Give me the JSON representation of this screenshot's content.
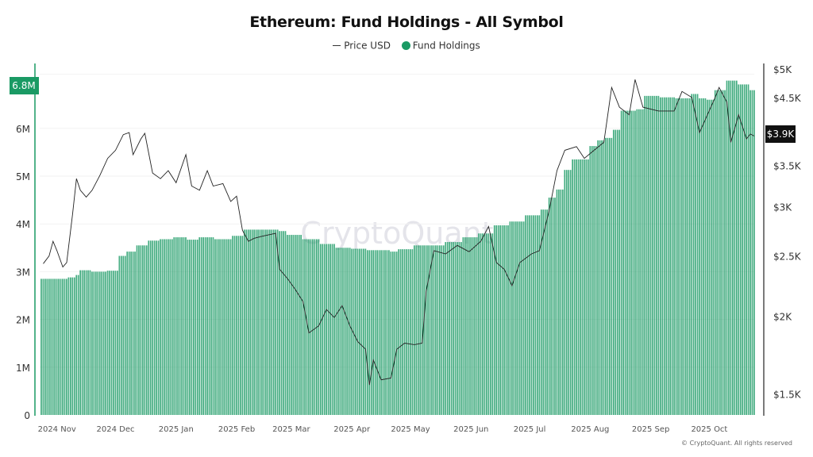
{
  "chart_data": {
    "type": "bar+line",
    "title": "Ethereum: Fund Holdings - All Symbol",
    "legend": {
      "placement": "top-center",
      "items": [
        "Price USD",
        "Fund Holdings"
      ]
    },
    "watermark": "CryptoQuant",
    "copyright": "© CryptoQuant. All rights reserved",
    "colors": {
      "fund_holdings": "#1a9a64",
      "price": "#222222",
      "current_holdings_label_bg": "#1a9a64",
      "current_price_label_bg": "#111111"
    },
    "x_range": [
      "2024-10-24",
      "2025-10-24"
    ],
    "x_ticks": [
      {
        "date": "2024-11-01",
        "label": "2024 Nov"
      },
      {
        "date": "2024-12-01",
        "label": "2024 Dec"
      },
      {
        "date": "2025-01-01",
        "label": "2025 Jan"
      },
      {
        "date": "2025-02-01",
        "label": "2025 Feb"
      },
      {
        "date": "2025-03-01",
        "label": "2025 Mar"
      },
      {
        "date": "2025-04-01",
        "label": "2025 Apr"
      },
      {
        "date": "2025-05-01",
        "label": "2025 May"
      },
      {
        "date": "2025-06-01",
        "label": "2025 Jun"
      },
      {
        "date": "2025-07-01",
        "label": "2025 Jul"
      },
      {
        "date": "2025-08-01",
        "label": "2025 Aug"
      },
      {
        "date": "2025-09-01",
        "label": "2025 Sep"
      },
      {
        "date": "2025-10-01",
        "label": "2025 Oct"
      }
    ],
    "y_left": {
      "scale": "linear",
      "range": [
        0,
        7200000
      ],
      "ticks": [
        {
          "v": 0,
          "label": "0"
        },
        {
          "v": 1000000,
          "label": "1M"
        },
        {
          "v": 2000000,
          "label": "2M"
        },
        {
          "v": 3000000,
          "label": "3M"
        },
        {
          "v": 4000000,
          "label": "4M"
        },
        {
          "v": 5000000,
          "label": "5M"
        },
        {
          "v": 6000000,
          "label": "6M"
        }
      ],
      "current_label": "6.8M",
      "current_value": 6800000
    },
    "y_right": {
      "scale": "log",
      "range": [
        1300,
        5000
      ],
      "ticks": [
        {
          "v": 1500,
          "label": "$1.5K"
        },
        {
          "v": 2000,
          "label": "$2K"
        },
        {
          "v": 2500,
          "label": "$2.5K"
        },
        {
          "v": 3000,
          "label": "$3K"
        },
        {
          "v": 3500,
          "label": "$3.5K"
        },
        {
          "v": 4500,
          "label": "$4.5K"
        },
        {
          "v": 5000,
          "label": "$5K"
        }
      ],
      "current_label": "$3.9K",
      "current_value": 3900
    },
    "grid": true,
    "series": [
      {
        "name": "Fund Holdings",
        "type": "bar",
        "axis": "left",
        "points": [
          [
            "2024-10-24",
            2850000
          ],
          [
            "2024-11-07",
            2880000
          ],
          [
            "2024-11-11",
            2930000
          ],
          [
            "2024-11-13",
            3030000
          ],
          [
            "2024-11-19",
            3000000
          ],
          [
            "2024-11-27",
            3020000
          ],
          [
            "2024-12-03",
            3330000
          ],
          [
            "2024-12-07",
            3420000
          ],
          [
            "2024-12-12",
            3550000
          ],
          [
            "2024-12-18",
            3650000
          ],
          [
            "2024-12-24",
            3680000
          ],
          [
            "2024-12-31",
            3720000
          ],
          [
            "2025-01-07",
            3670000
          ],
          [
            "2025-01-13",
            3720000
          ],
          [
            "2025-01-21",
            3680000
          ],
          [
            "2025-01-30",
            3750000
          ],
          [
            "2025-02-05",
            3880000
          ],
          [
            "2025-02-15",
            3880000
          ],
          [
            "2025-02-23",
            3850000
          ],
          [
            "2025-02-27",
            3770000
          ],
          [
            "2025-03-07",
            3680000
          ],
          [
            "2025-03-16",
            3580000
          ],
          [
            "2025-03-24",
            3500000
          ],
          [
            "2025-04-01",
            3480000
          ],
          [
            "2025-04-09",
            3450000
          ],
          [
            "2025-04-21",
            3420000
          ],
          [
            "2025-04-25",
            3470000
          ],
          [
            "2025-05-03",
            3550000
          ],
          [
            "2025-05-11",
            3550000
          ],
          [
            "2025-05-19",
            3620000
          ],
          [
            "2025-05-28",
            3720000
          ],
          [
            "2025-06-05",
            3800000
          ],
          [
            "2025-06-13",
            3970000
          ],
          [
            "2025-06-21",
            4050000
          ],
          [
            "2025-06-29",
            4180000
          ],
          [
            "2025-07-07",
            4300000
          ],
          [
            "2025-07-11",
            4550000
          ],
          [
            "2025-07-15",
            4720000
          ],
          [
            "2025-07-19",
            5130000
          ],
          [
            "2025-07-23",
            5350000
          ],
          [
            "2025-08-01",
            5630000
          ],
          [
            "2025-08-05",
            5750000
          ],
          [
            "2025-08-09",
            5800000
          ],
          [
            "2025-08-13",
            5970000
          ],
          [
            "2025-08-17",
            6370000
          ],
          [
            "2025-08-25",
            6400000
          ],
          [
            "2025-08-29",
            6680000
          ],
          [
            "2025-09-06",
            6650000
          ],
          [
            "2025-09-14",
            6630000
          ],
          [
            "2025-09-22",
            6720000
          ],
          [
            "2025-09-26",
            6630000
          ],
          [
            "2025-09-30",
            6600000
          ],
          [
            "2025-10-04",
            6800000
          ],
          [
            "2025-10-10",
            7000000
          ],
          [
            "2025-10-16",
            6920000
          ],
          [
            "2025-10-22",
            6800000
          ]
        ]
      },
      {
        "name": "Price USD",
        "type": "line",
        "axis": "right",
        "points": [
          [
            "2024-10-25",
            2430
          ],
          [
            "2024-10-28",
            2500
          ],
          [
            "2024-10-30",
            2640
          ],
          [
            "2024-11-01",
            2550
          ],
          [
            "2024-11-04",
            2400
          ],
          [
            "2024-11-06",
            2440
          ],
          [
            "2024-11-09",
            2920
          ],
          [
            "2024-11-11",
            3330
          ],
          [
            "2024-11-13",
            3190
          ],
          [
            "2024-11-16",
            3110
          ],
          [
            "2024-11-19",
            3190
          ],
          [
            "2024-11-23",
            3370
          ],
          [
            "2024-11-27",
            3590
          ],
          [
            "2024-12-01",
            3700
          ],
          [
            "2024-12-05",
            3920
          ],
          [
            "2024-12-08",
            3950
          ],
          [
            "2024-12-10",
            3640
          ],
          [
            "2024-12-14",
            3860
          ],
          [
            "2024-12-16",
            3940
          ],
          [
            "2024-12-20",
            3400
          ],
          [
            "2024-12-24",
            3330
          ],
          [
            "2024-12-28",
            3430
          ],
          [
            "2025-01-01",
            3280
          ],
          [
            "2025-01-06",
            3640
          ],
          [
            "2025-01-09",
            3240
          ],
          [
            "2025-01-13",
            3190
          ],
          [
            "2025-01-17",
            3430
          ],
          [
            "2025-01-20",
            3240
          ],
          [
            "2025-01-25",
            3270
          ],
          [
            "2025-01-29",
            3060
          ],
          [
            "2025-02-01",
            3120
          ],
          [
            "2025-02-04",
            2750
          ],
          [
            "2025-02-07",
            2640
          ],
          [
            "2025-02-10",
            2670
          ],
          [
            "2025-02-14",
            2690
          ],
          [
            "2025-02-21",
            2720
          ],
          [
            "2025-02-23",
            2380
          ],
          [
            "2025-02-27",
            2300
          ],
          [
            "2025-03-03",
            2210
          ],
          [
            "2025-03-07",
            2110
          ],
          [
            "2025-03-10",
            1880
          ],
          [
            "2025-03-15",
            1930
          ],
          [
            "2025-03-19",
            2050
          ],
          [
            "2025-03-23",
            1990
          ],
          [
            "2025-03-27",
            2080
          ],
          [
            "2025-03-31",
            1930
          ],
          [
            "2025-04-04",
            1820
          ],
          [
            "2025-04-08",
            1770
          ],
          [
            "2025-04-10",
            1550
          ],
          [
            "2025-04-12",
            1700
          ],
          [
            "2025-04-16",
            1580
          ],
          [
            "2025-04-21",
            1590
          ],
          [
            "2025-04-24",
            1770
          ],
          [
            "2025-04-28",
            1810
          ],
          [
            "2025-05-03",
            1800
          ],
          [
            "2025-05-07",
            1810
          ],
          [
            "2025-05-09",
            2190
          ],
          [
            "2025-05-13",
            2550
          ],
          [
            "2025-05-19",
            2520
          ],
          [
            "2025-05-25",
            2600
          ],
          [
            "2025-05-31",
            2540
          ],
          [
            "2025-06-06",
            2640
          ],
          [
            "2025-06-10",
            2790
          ],
          [
            "2025-06-14",
            2440
          ],
          [
            "2025-06-18",
            2380
          ],
          [
            "2025-06-22",
            2240
          ],
          [
            "2025-06-26",
            2440
          ],
          [
            "2025-07-02",
            2520
          ],
          [
            "2025-07-06",
            2550
          ],
          [
            "2025-07-11",
            2960
          ],
          [
            "2025-07-15",
            3430
          ],
          [
            "2025-07-19",
            3700
          ],
          [
            "2025-07-25",
            3750
          ],
          [
            "2025-07-29",
            3590
          ],
          [
            "2025-08-03",
            3700
          ],
          [
            "2025-08-08",
            3810
          ],
          [
            "2025-08-12",
            4670
          ],
          [
            "2025-08-16",
            4340
          ],
          [
            "2025-08-21",
            4220
          ],
          [
            "2025-08-24",
            4810
          ],
          [
            "2025-08-28",
            4340
          ],
          [
            "2025-09-05",
            4280
          ],
          [
            "2025-09-13",
            4280
          ],
          [
            "2025-09-17",
            4600
          ],
          [
            "2025-09-22",
            4500
          ],
          [
            "2025-09-26",
            3950
          ],
          [
            "2025-09-30",
            4220
          ],
          [
            "2025-10-04",
            4500
          ],
          [
            "2025-10-06",
            4670
          ],
          [
            "2025-10-10",
            4420
          ],
          [
            "2025-10-12",
            3810
          ],
          [
            "2025-10-16",
            4220
          ],
          [
            "2025-10-20",
            3860
          ],
          [
            "2025-10-22",
            3930
          ],
          [
            "2025-10-24",
            3900
          ]
        ]
      }
    ]
  }
}
